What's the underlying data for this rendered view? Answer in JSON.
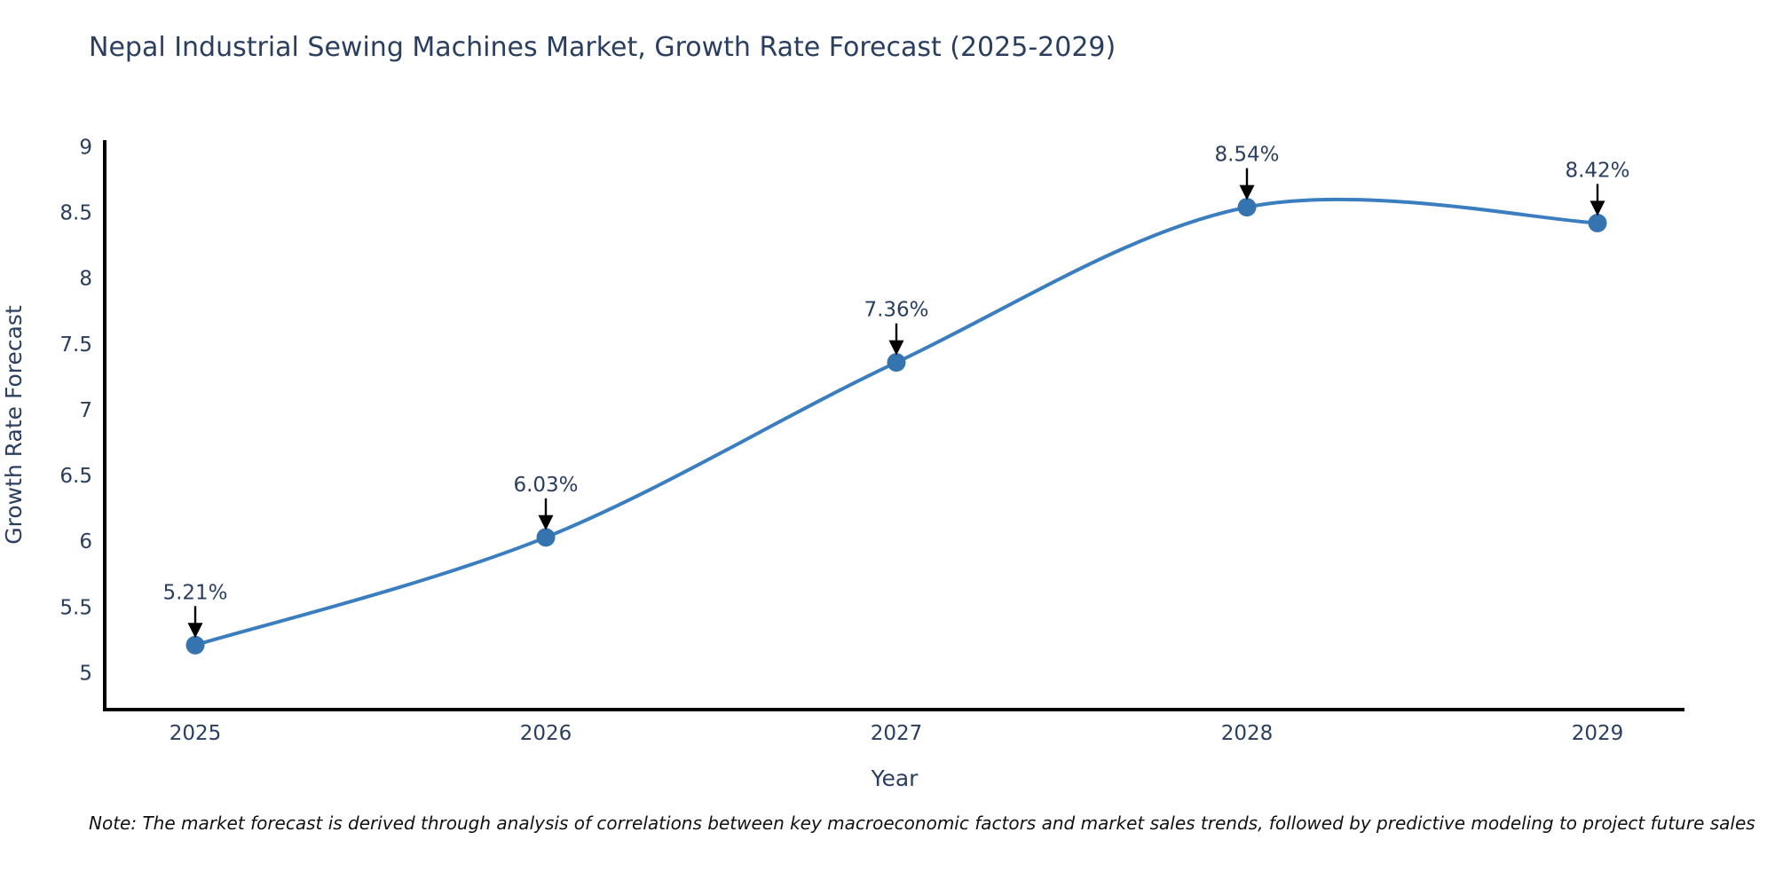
{
  "title": "Nepal Industrial Sewing Machines Market, Growth Rate Forecast (2025-2029)",
  "note": "Note: The market forecast is derived through analysis of correlations between key macroeconomic factors and market sales trends, followed by predictive modeling to project future sales",
  "chart_data": {
    "type": "line",
    "line_shape": "spline",
    "title": "Nepal Industrial Sewing Machines Market, Growth Rate Forecast (2025-2029)",
    "xlabel": "Year",
    "ylabel": "Growth Rate Forecast",
    "categories": [
      "2025",
      "2026",
      "2027",
      "2028",
      "2029"
    ],
    "values": [
      5.21,
      6.03,
      7.36,
      8.54,
      8.42
    ],
    "point_labels": [
      "5.21%",
      "6.03%",
      "7.36%",
      "8.54%",
      "8.42%"
    ],
    "yticks": [
      5,
      5.5,
      6,
      6.5,
      7,
      7.5,
      8,
      8.5,
      9
    ],
    "ylim": [
      4.72,
      9.05
    ],
    "grid": false,
    "legend_position": "none",
    "colors": {
      "line": "#3a7ebf",
      "marker": "#3674b0",
      "axis": "#000000",
      "tick_text": "#2a3f5f",
      "annotation_text": "#2a3f5f",
      "annotation_arrow": "#000000",
      "title_text": "#2a3f5f"
    }
  }
}
